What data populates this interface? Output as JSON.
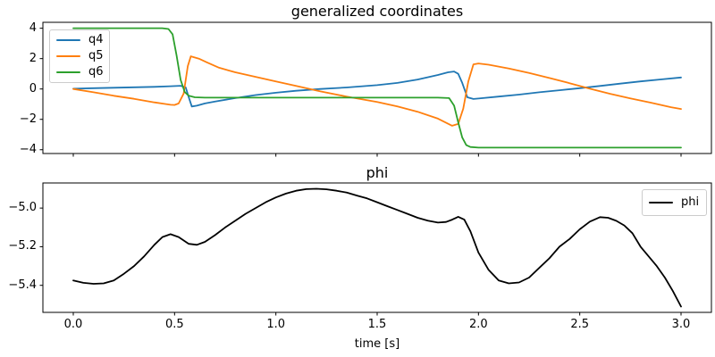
{
  "figure": {
    "background": "#ffffff"
  },
  "chart_data": [
    {
      "type": "line",
      "title": "generalized coordinates",
      "xlabel": "",
      "ylabel": "",
      "xlim": [
        -0.15,
        3.15
      ],
      "ylim": [
        -4.25,
        4.39
      ],
      "grid": false,
      "xticks": [
        0,
        0.5,
        1,
        1.5,
        2,
        2.5,
        3
      ],
      "xtick_labels": [],
      "yticks": [
        4,
        2,
        0,
        -2,
        -4
      ],
      "ytick_labels": [
        "4",
        "2",
        "0",
        "−2",
        "−4"
      ],
      "legend": {
        "position": "upper left",
        "entries": [
          "q4",
          "q5",
          "q6"
        ]
      },
      "series": [
        {
          "name": "q4",
          "color": "#1f77b4",
          "x": [
            0,
            0.1,
            0.2,
            0.3,
            0.4,
            0.48,
            0.53,
            0.555,
            0.57,
            0.585,
            0.61,
            0.65,
            0.7,
            0.8,
            0.9,
            1.0,
            1.1,
            1.22,
            1.35,
            1.5,
            1.6,
            1.7,
            1.8,
            1.85,
            1.88,
            1.9,
            1.92,
            1.945,
            1.975,
            2.0,
            2.1,
            2.2,
            2.3,
            2.4,
            2.5,
            2.6,
            2.7,
            2.8,
            2.9,
            3.0
          ],
          "y": [
            0.02,
            0.05,
            0.08,
            0.11,
            0.14,
            0.18,
            0.21,
            0.1,
            -0.55,
            -1.15,
            -1.1,
            -0.95,
            -0.83,
            -0.6,
            -0.4,
            -0.25,
            -0.12,
            0.0,
            0.1,
            0.25,
            0.4,
            0.62,
            0.92,
            1.1,
            1.15,
            1.0,
            0.4,
            -0.55,
            -0.66,
            -0.63,
            -0.5,
            -0.37,
            -0.22,
            -0.08,
            0.05,
            0.2,
            0.35,
            0.5,
            0.63,
            0.76
          ]
        },
        {
          "name": "q5",
          "color": "#ff7f0e",
          "x": [
            0,
            0.1,
            0.2,
            0.3,
            0.4,
            0.45,
            0.48,
            0.5,
            0.52,
            0.545,
            0.565,
            0.58,
            0.62,
            0.66,
            0.72,
            0.8,
            0.9,
            1.0,
            1.1,
            1.22,
            1.35,
            1.5,
            1.6,
            1.7,
            1.8,
            1.87,
            1.9,
            1.925,
            1.95,
            1.975,
            2.0,
            2.05,
            2.15,
            2.25,
            2.35,
            2.45,
            2.55,
            2.65,
            2.75,
            2.85,
            2.95,
            3.0
          ],
          "y": [
            0.0,
            -0.22,
            -0.45,
            -0.65,
            -0.88,
            -0.98,
            -1.04,
            -1.05,
            -0.95,
            -0.3,
            1.5,
            2.15,
            2.0,
            1.75,
            1.4,
            1.1,
            0.8,
            0.5,
            0.2,
            -0.16,
            -0.5,
            -0.85,
            -1.15,
            -1.5,
            -1.95,
            -2.42,
            -2.3,
            -1.3,
            0.5,
            1.62,
            1.68,
            1.6,
            1.35,
            1.05,
            0.72,
            0.38,
            0.02,
            -0.32,
            -0.62,
            -0.9,
            -1.2,
            -1.32
          ]
        },
        {
          "name": "q6",
          "color": "#2ca02c",
          "x": [
            0,
            0.44,
            0.47,
            0.49,
            0.51,
            0.53,
            0.55,
            0.57,
            0.6,
            0.65,
            1.0,
            1.5,
            1.8,
            1.855,
            1.88,
            1.9,
            1.92,
            1.94,
            1.96,
            2.0,
            2.5,
            3.0
          ],
          "y": [
            4.0,
            4.0,
            3.95,
            3.6,
            2.2,
            0.6,
            -0.2,
            -0.45,
            -0.55,
            -0.57,
            -0.57,
            -0.57,
            -0.57,
            -0.6,
            -1.1,
            -2.2,
            -3.2,
            -3.7,
            -3.82,
            -3.86,
            -3.86,
            -3.86
          ]
        }
      ]
    },
    {
      "type": "line",
      "title": "phi",
      "xlabel": "time [s]",
      "ylabel": "",
      "xlim": [
        -0.15,
        3.15
      ],
      "ylim": [
        -5.54,
        -4.87
      ],
      "grid": false,
      "xticks": [
        0,
        0.5,
        1,
        1.5,
        2,
        2.5,
        3
      ],
      "xtick_labels": [
        "0.0",
        "0.5",
        "1.0",
        "1.5",
        "2.0",
        "2.5",
        "3.0"
      ],
      "yticks": [
        -5.0,
        -5.2,
        -5.4
      ],
      "ytick_labels": [
        "−5.0",
        "−5.2",
        "−5.4"
      ],
      "legend": {
        "position": "upper right",
        "entries": [
          "phi"
        ]
      },
      "series": [
        {
          "name": "phi",
          "color": "#000000",
          "x": [
            0,
            0.05,
            0.1,
            0.15,
            0.2,
            0.25,
            0.3,
            0.35,
            0.4,
            0.44,
            0.48,
            0.52,
            0.57,
            0.61,
            0.65,
            0.7,
            0.75,
            0.8,
            0.85,
            0.9,
            0.95,
            1.0,
            1.05,
            1.1,
            1.15,
            1.2,
            1.25,
            1.3,
            1.35,
            1.4,
            1.45,
            1.5,
            1.55,
            1.6,
            1.65,
            1.7,
            1.75,
            1.8,
            1.84,
            1.87,
            1.9,
            1.93,
            1.96,
            2.0,
            2.05,
            2.1,
            2.15,
            2.2,
            2.25,
            2.3,
            2.35,
            2.4,
            2.45,
            2.5,
            2.55,
            2.6,
            2.64,
            2.68,
            2.72,
            2.76,
            2.8,
            2.84,
            2.88,
            2.92,
            2.96,
            3.0
          ],
          "y": [
            -5.375,
            -5.387,
            -5.392,
            -5.39,
            -5.375,
            -5.34,
            -5.3,
            -5.25,
            -5.19,
            -5.15,
            -5.135,
            -5.15,
            -5.185,
            -5.19,
            -5.175,
            -5.14,
            -5.1,
            -5.065,
            -5.03,
            -5.0,
            -4.97,
            -4.945,
            -4.925,
            -4.91,
            -4.902,
            -4.9,
            -4.903,
            -4.91,
            -4.92,
            -4.935,
            -4.95,
            -4.97,
            -4.99,
            -5.01,
            -5.03,
            -5.05,
            -5.065,
            -5.075,
            -5.072,
            -5.06,
            -5.045,
            -5.06,
            -5.12,
            -5.23,
            -5.32,
            -5.375,
            -5.39,
            -5.385,
            -5.36,
            -5.31,
            -5.26,
            -5.2,
            -5.16,
            -5.11,
            -5.07,
            -5.047,
            -5.05,
            -5.066,
            -5.09,
            -5.13,
            -5.2,
            -5.25,
            -5.3,
            -5.36,
            -5.43,
            -5.51
          ]
        }
      ]
    }
  ]
}
